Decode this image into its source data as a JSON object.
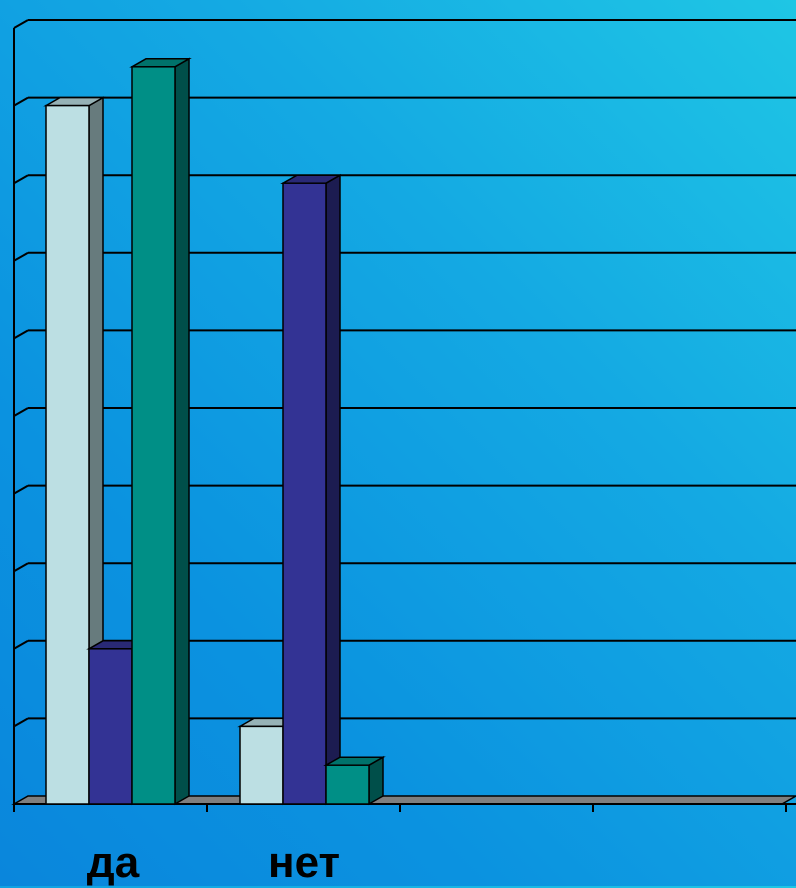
{
  "chart_data": {
    "type": "bar",
    "style": "3d-clustered-column",
    "categories": [
      "да",
      "нет"
    ],
    "series": [
      {
        "values": [
          9.0,
          1.0
        ],
        "color": "#bcdfe3"
      },
      {
        "values": [
          2.0,
          8.0
        ],
        "color": "#333394"
      },
      {
        "values": [
          9.5,
          0.5
        ],
        "color": "#008f86"
      }
    ],
    "ylim": [
      0,
      10
    ],
    "gridlines": true,
    "tick_labels_visible": false,
    "legend": "none"
  }
}
